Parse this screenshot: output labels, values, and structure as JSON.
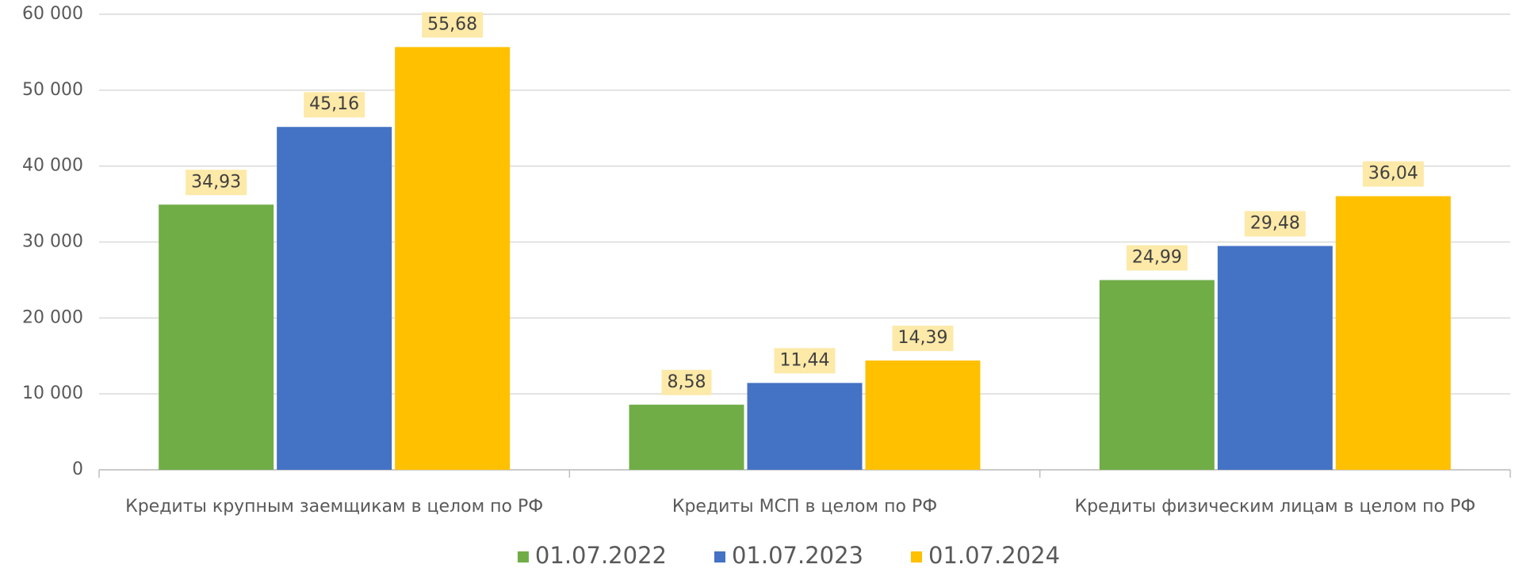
{
  "chart_data": {
    "type": "bar",
    "categories": [
      "Кредиты крупным заемщикам в целом по РФ",
      "Кредиты МСП в целом по РФ",
      "Кредиты физическим лицам в целом по РФ"
    ],
    "series": [
      {
        "name": "01.07.2022",
        "color": "#70ad47",
        "values": [
          34930,
          8580,
          24990
        ],
        "value_labels": [
          "34,93",
          "8,58",
          "24,99"
        ]
      },
      {
        "name": "01.07.2023",
        "color": "#4472c4",
        "values": [
          45160,
          11440,
          29480
        ],
        "value_labels": [
          "45,16",
          "11,44",
          "29,48"
        ]
      },
      {
        "name": "01.07.2024",
        "color": "#ffc000",
        "values": [
          55680,
          14390,
          36040
        ],
        "value_labels": [
          "55,68",
          "14,39",
          "36,04"
        ]
      }
    ],
    "ylim": [
      0,
      60000
    ],
    "yticks": [
      0,
      {
        "value": 10000,
        "label": "10 000"
      },
      {
        "value": 20000,
        "label": "20 000"
      },
      {
        "value": 30000,
        "label": "30 000"
      },
      {
        "value": 40000,
        "label": "40 000"
      },
      {
        "value": 50000,
        "label": "50 000"
      },
      {
        "value": 60000,
        "label": "60 000"
      }
    ],
    "grid": true,
    "legend": "bottom"
  }
}
